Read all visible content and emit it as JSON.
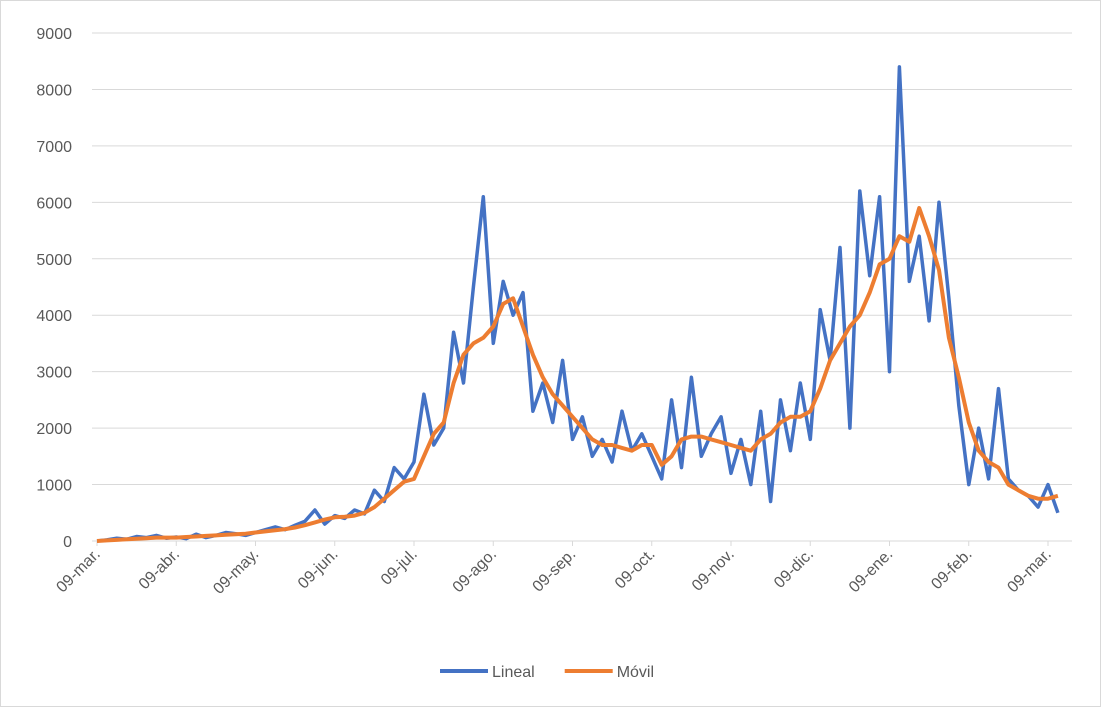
{
  "chart_data": {
    "type": "line",
    "categories": [
      "09-mar.",
      null,
      null,
      null,
      null,
      null,
      null,
      null,
      "09-abr.",
      null,
      null,
      null,
      null,
      null,
      null,
      null,
      "09-may.",
      null,
      null,
      null,
      null,
      null,
      null,
      null,
      "09-jun.",
      null,
      null,
      null,
      null,
      null,
      null,
      null,
      "09-jul.",
      null,
      null,
      null,
      null,
      null,
      null,
      null,
      "09-ago.",
      null,
      null,
      null,
      null,
      null,
      null,
      null,
      "09-sep.",
      null,
      null,
      null,
      null,
      null,
      null,
      null,
      "09-oct.",
      null,
      null,
      null,
      null,
      null,
      null,
      null,
      "09-nov.",
      null,
      null,
      null,
      null,
      null,
      null,
      null,
      "09-dic.",
      null,
      null,
      null,
      null,
      null,
      null,
      null,
      "09-ene.",
      null,
      null,
      null,
      null,
      null,
      null,
      null,
      "09-feb.",
      null,
      null,
      null,
      null,
      null,
      null,
      null,
      "09-mar.",
      null
    ],
    "series": [
      {
        "name": "Lineal",
        "color": "#4472c4",
        "values": [
          0,
          20,
          50,
          30,
          80,
          60,
          100,
          50,
          70,
          40,
          120,
          60,
          100,
          150,
          130,
          100,
          150,
          200,
          250,
          200,
          280,
          350,
          550,
          300,
          450,
          400,
          550,
          480,
          900,
          700,
          1300,
          1100,
          1400,
          2600,
          1700,
          2000,
          3700,
          2800,
          4500,
          6100,
          3500,
          4600,
          4000,
          4400,
          2300,
          2800,
          2100,
          3200,
          1800,
          2200,
          1500,
          1800,
          1400,
          2300,
          1600,
          1900,
          1500,
          1100,
          2500,
          1300,
          2900,
          1500,
          1900,
          2200,
          1200,
          1800,
          1000,
          2300,
          700,
          2500,
          1600,
          2800,
          1800,
          4100,
          3200,
          5200,
          2000,
          6200,
          4700,
          6100,
          3000,
          8400,
          4600,
          5400,
          3900,
          6000,
          4300,
          2400,
          1000,
          2000,
          1100,
          2700,
          1100,
          900,
          800,
          600,
          1000,
          500
        ]
      },
      {
        "name": "Móvil",
        "color": "#ed7d31",
        "values": [
          0,
          10,
          20,
          30,
          40,
          50,
          60,
          60,
          60,
          70,
          80,
          90,
          100,
          110,
          120,
          130,
          150,
          170,
          190,
          210,
          240,
          280,
          330,
          380,
          420,
          430,
          450,
          500,
          600,
          750,
          900,
          1050,
          1100,
          1500,
          1900,
          2100,
          2800,
          3300,
          3500,
          3600,
          3800,
          4200,
          4300,
          3800,
          3300,
          2900,
          2600,
          2400,
          2200,
          2000,
          1800,
          1700,
          1700,
          1650,
          1600,
          1700,
          1700,
          1350,
          1500,
          1800,
          1850,
          1850,
          1800,
          1750,
          1700,
          1650,
          1600,
          1800,
          1900,
          2100,
          2200,
          2200,
          2300,
          2700,
          3200,
          3500,
          3800,
          4000,
          4400,
          4900,
          5000,
          5400,
          5300,
          5900,
          5400,
          4800,
          3600,
          2900,
          2100,
          1600,
          1400,
          1300,
          1000,
          900,
          800,
          750,
          750,
          800
        ]
      }
    ],
    "ylim": [
      0,
      9000
    ],
    "yticks": [
      0,
      1000,
      2000,
      3000,
      4000,
      5000,
      6000,
      7000,
      8000,
      9000
    ],
    "grid": true,
    "legend": "bottom"
  }
}
